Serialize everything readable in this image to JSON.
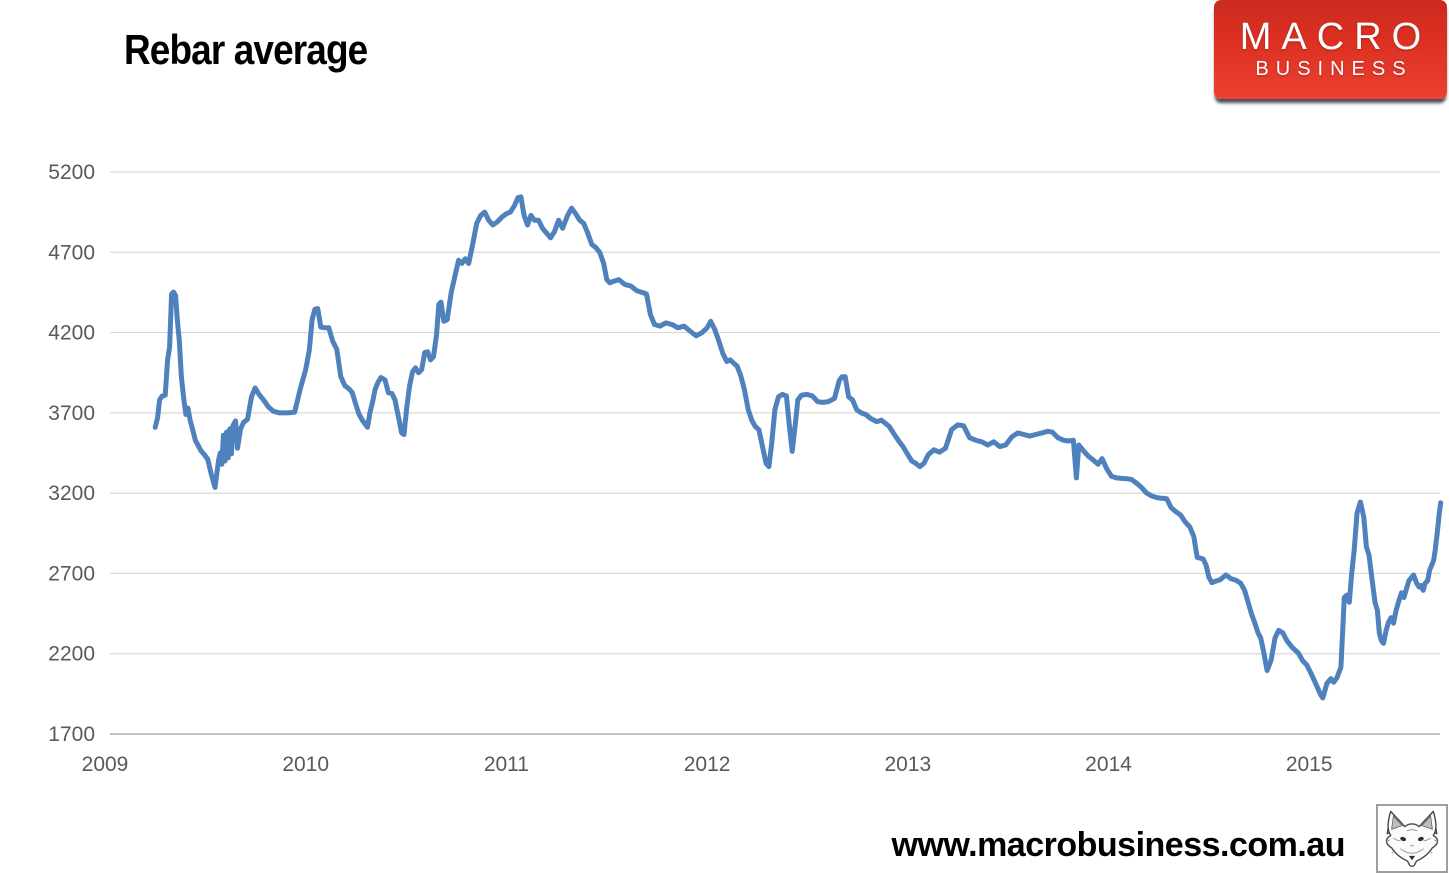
{
  "title": "Rebar average",
  "logo": {
    "line1": "MACRO",
    "line2": "BUSINESS"
  },
  "footer": {
    "url": "www.macrobusiness.com.au"
  },
  "icons": {
    "bottom_right": "fox-sketch-icon"
  },
  "colors": {
    "series": "#4F81BD",
    "grid": "#D9D9D9",
    "axis_line": "#ADADAD",
    "tick_text": "#595959",
    "logo_red_top": "#CB2A1F",
    "logo_red_bottom": "#EC4031",
    "logo_shadow": "#2A2A3E"
  },
  "chart_data": {
    "type": "line",
    "title": "Rebar average",
    "xlabel": "",
    "ylabel": "",
    "legend": "none",
    "grid": "horizontal",
    "x_ticks": [
      2009,
      2010,
      2011,
      2012,
      2013,
      2014,
      2015
    ],
    "y_ticks": [
      5200,
      4700,
      4200,
      3700,
      3200,
      2700,
      2200,
      1700
    ],
    "ylim": [
      1700,
      5200
    ],
    "xlim": [
      2009,
      2015.66
    ],
    "series_name": "Rebar average",
    "points": [
      [
        2009.25,
        3610
      ],
      [
        2009.262,
        3670
      ],
      [
        2009.272,
        3780
      ],
      [
        2009.285,
        3805
      ],
      [
        2009.3,
        3810
      ],
      [
        2009.312,
        4030
      ],
      [
        2009.322,
        4110
      ],
      [
        2009.332,
        4440
      ],
      [
        2009.342,
        4452
      ],
      [
        2009.352,
        4430
      ],
      [
        2009.36,
        4280
      ],
      [
        2009.37,
        4150
      ],
      [
        2009.38,
        3930
      ],
      [
        2009.393,
        3780
      ],
      [
        2009.403,
        3690
      ],
      [
        2009.413,
        3730
      ],
      [
        2009.424,
        3655
      ],
      [
        2009.438,
        3590
      ],
      [
        2009.45,
        3530
      ],
      [
        2009.463,
        3500
      ],
      [
        2009.478,
        3465
      ],
      [
        2009.495,
        3440
      ],
      [
        2009.512,
        3410
      ],
      [
        2009.527,
        3330
      ],
      [
        2009.538,
        3280
      ],
      [
        2009.548,
        3235
      ],
      [
        2009.558,
        3330
      ],
      [
        2009.566,
        3405
      ],
      [
        2009.574,
        3450
      ],
      [
        2009.582,
        3380
      ],
      [
        2009.59,
        3560
      ],
      [
        2009.598,
        3400
      ],
      [
        2009.606,
        3580
      ],
      [
        2009.614,
        3420
      ],
      [
        2009.622,
        3600
      ],
      [
        2009.63,
        3445
      ],
      [
        2009.638,
        3620
      ],
      [
        2009.65,
        3650
      ],
      [
        2009.66,
        3480
      ],
      [
        2009.675,
        3600
      ],
      [
        2009.69,
        3640
      ],
      [
        2009.71,
        3660
      ],
      [
        2009.73,
        3800
      ],
      [
        2009.748,
        3855
      ],
      [
        2009.768,
        3815
      ],
      [
        2009.79,
        3780
      ],
      [
        2009.815,
        3735
      ],
      [
        2009.84,
        3710
      ],
      [
        2009.87,
        3700
      ],
      [
        2009.91,
        3700
      ],
      [
        2009.945,
        3705
      ],
      [
        2009.972,
        3845
      ],
      [
        2010.0,
        3970
      ],
      [
        2010.018,
        4090
      ],
      [
        2010.032,
        4280
      ],
      [
        2010.046,
        4345
      ],
      [
        2010.06,
        4350
      ],
      [
        2010.075,
        4235
      ],
      [
        2010.095,
        4230
      ],
      [
        2010.115,
        4230
      ],
      [
        2010.135,
        4145
      ],
      [
        2010.155,
        4095
      ],
      [
        2010.175,
        3925
      ],
      [
        2010.195,
        3870
      ],
      [
        2010.215,
        3850
      ],
      [
        2010.232,
        3825
      ],
      [
        2010.25,
        3750
      ],
      [
        2010.266,
        3690
      ],
      [
        2010.282,
        3655
      ],
      [
        2010.296,
        3630
      ],
      [
        2010.308,
        3610
      ],
      [
        2010.32,
        3700
      ],
      [
        2010.332,
        3760
      ],
      [
        2010.346,
        3845
      ],
      [
        2010.36,
        3890
      ],
      [
        2010.375,
        3920
      ],
      [
        2010.395,
        3905
      ],
      [
        2010.412,
        3825
      ],
      [
        2010.43,
        3820
      ],
      [
        2010.445,
        3780
      ],
      [
        2010.458,
        3700
      ],
      [
        2010.468,
        3640
      ],
      [
        2010.478,
        3575
      ],
      [
        2010.49,
        3565
      ],
      [
        2010.503,
        3730
      ],
      [
        2010.517,
        3865
      ],
      [
        2010.532,
        3955
      ],
      [
        2010.547,
        3980
      ],
      [
        2010.562,
        3950
      ],
      [
        2010.578,
        3970
      ],
      [
        2010.593,
        4075
      ],
      [
        2010.608,
        4080
      ],
      [
        2010.622,
        4030
      ],
      [
        2010.637,
        4050
      ],
      [
        2010.652,
        4190
      ],
      [
        2010.663,
        4375
      ],
      [
        2010.674,
        4390
      ],
      [
        2010.688,
        4270
      ],
      [
        2010.705,
        4280
      ],
      [
        2010.725,
        4450
      ],
      [
        2010.745,
        4560
      ],
      [
        2010.762,
        4650
      ],
      [
        2010.778,
        4630
      ],
      [
        2010.795,
        4660
      ],
      [
        2010.812,
        4630
      ],
      [
        2010.832,
        4750
      ],
      [
        2010.852,
        4880
      ],
      [
        2010.872,
        4930
      ],
      [
        2010.892,
        4950
      ],
      [
        2010.912,
        4900
      ],
      [
        2010.932,
        4870
      ],
      [
        2010.955,
        4890
      ],
      [
        2010.978,
        4920
      ],
      [
        2011.0,
        4940
      ],
      [
        2011.02,
        4950
      ],
      [
        2011.04,
        4990
      ],
      [
        2011.058,
        5040
      ],
      [
        2011.072,
        5045
      ],
      [
        2011.088,
        4930
      ],
      [
        2011.105,
        4870
      ],
      [
        2011.122,
        4930
      ],
      [
        2011.14,
        4900
      ],
      [
        2011.16,
        4900
      ],
      [
        2011.18,
        4850
      ],
      [
        2011.2,
        4820
      ],
      [
        2011.22,
        4790
      ],
      [
        2011.24,
        4830
      ],
      [
        2011.26,
        4900
      ],
      [
        2011.28,
        4850
      ],
      [
        2011.305,
        4930
      ],
      [
        2011.325,
        4975
      ],
      [
        2011.345,
        4940
      ],
      [
        2011.365,
        4900
      ],
      [
        2011.385,
        4880
      ],
      [
        2011.405,
        4820
      ],
      [
        2011.425,
        4750
      ],
      [
        2011.445,
        4730
      ],
      [
        2011.465,
        4700
      ],
      [
        2011.485,
        4630
      ],
      [
        2011.5,
        4530
      ],
      [
        2011.515,
        4510
      ],
      [
        2011.535,
        4520
      ],
      [
        2011.56,
        4530
      ],
      [
        2011.59,
        4500
      ],
      [
        2011.62,
        4490
      ],
      [
        2011.65,
        4460
      ],
      [
        2011.675,
        4450
      ],
      [
        2011.698,
        4440
      ],
      [
        2011.718,
        4310
      ],
      [
        2011.738,
        4250
      ],
      [
        2011.765,
        4240
      ],
      [
        2011.795,
        4260
      ],
      [
        2011.825,
        4250
      ],
      [
        2011.855,
        4230
      ],
      [
        2011.885,
        4240
      ],
      [
        2011.915,
        4210
      ],
      [
        2011.945,
        4180
      ],
      [
        2011.975,
        4200
      ],
      [
        2012.0,
        4230
      ],
      [
        2012.018,
        4270
      ],
      [
        2012.038,
        4220
      ],
      [
        2012.058,
        4150
      ],
      [
        2012.078,
        4070
      ],
      [
        2012.098,
        4020
      ],
      [
        2012.115,
        4030
      ],
      [
        2012.132,
        4010
      ],
      [
        2012.15,
        3990
      ],
      [
        2012.168,
        3930
      ],
      [
        2012.186,
        3845
      ],
      [
        2012.205,
        3720
      ],
      [
        2012.222,
        3655
      ],
      [
        2012.24,
        3615
      ],
      [
        2012.258,
        3595
      ],
      [
        2012.276,
        3490
      ],
      [
        2012.294,
        3385
      ],
      [
        2012.308,
        3365
      ],
      [
        2012.322,
        3510
      ],
      [
        2012.338,
        3720
      ],
      [
        2012.356,
        3800
      ],
      [
        2012.375,
        3815
      ],
      [
        2012.395,
        3805
      ],
      [
        2012.412,
        3595
      ],
      [
        2012.424,
        3460
      ],
      [
        2012.44,
        3635
      ],
      [
        2012.452,
        3780
      ],
      [
        2012.47,
        3810
      ],
      [
        2012.498,
        3815
      ],
      [
        2012.525,
        3805
      ],
      [
        2012.55,
        3770
      ],
      [
        2012.578,
        3765
      ],
      [
        2012.605,
        3770
      ],
      [
        2012.635,
        3790
      ],
      [
        2012.658,
        3900
      ],
      [
        2012.672,
        3925
      ],
      [
        2012.688,
        3925
      ],
      [
        2012.705,
        3800
      ],
      [
        2012.725,
        3780
      ],
      [
        2012.745,
        3720
      ],
      [
        2012.768,
        3700
      ],
      [
        2012.79,
        3690
      ],
      [
        2012.815,
        3665
      ],
      [
        2012.845,
        3645
      ],
      [
        2012.868,
        3655
      ],
      [
        2012.888,
        3635
      ],
      [
        2012.908,
        3615
      ],
      [
        2012.928,
        3575
      ],
      [
        2012.952,
        3530
      ],
      [
        2012.976,
        3490
      ],
      [
        2013.0,
        3440
      ],
      [
        2013.02,
        3400
      ],
      [
        2013.04,
        3385
      ],
      [
        2013.06,
        3365
      ],
      [
        2013.08,
        3385
      ],
      [
        2013.102,
        3440
      ],
      [
        2013.13,
        3470
      ],
      [
        2013.158,
        3455
      ],
      [
        2013.188,
        3480
      ],
      [
        2013.218,
        3595
      ],
      [
        2013.248,
        3625
      ],
      [
        2013.278,
        3620
      ],
      [
        2013.308,
        3545
      ],
      [
        2013.338,
        3530
      ],
      [
        2013.368,
        3520
      ],
      [
        2013.398,
        3500
      ],
      [
        2013.428,
        3520
      ],
      [
        2013.458,
        3490
      ],
      [
        2013.488,
        3500
      ],
      [
        2013.518,
        3550
      ],
      [
        2013.548,
        3575
      ],
      [
        2013.578,
        3565
      ],
      [
        2013.608,
        3555
      ],
      [
        2013.638,
        3565
      ],
      [
        2013.668,
        3575
      ],
      [
        2013.698,
        3585
      ],
      [
        2013.72,
        3580
      ],
      [
        2013.748,
        3545
      ],
      [
        2013.775,
        3530
      ],
      [
        2013.8,
        3525
      ],
      [
        2013.825,
        3530
      ],
      [
        2013.84,
        3295
      ],
      [
        2013.852,
        3500
      ],
      [
        2013.878,
        3460
      ],
      [
        2013.9,
        3430
      ],
      [
        2013.925,
        3405
      ],
      [
        2013.948,
        3380
      ],
      [
        2013.968,
        3415
      ],
      [
        2013.99,
        3355
      ],
      [
        2014.015,
        3305
      ],
      [
        2014.04,
        3295
      ],
      [
        2014.065,
        3292
      ],
      [
        2014.09,
        3290
      ],
      [
        2014.115,
        3285
      ],
      [
        2014.14,
        3262
      ],
      [
        2014.165,
        3235
      ],
      [
        2014.19,
        3200
      ],
      [
        2014.215,
        3182
      ],
      [
        2014.24,
        3172
      ],
      [
        2014.265,
        3168
      ],
      [
        2014.29,
        3165
      ],
      [
        2014.312,
        3110
      ],
      [
        2014.335,
        3085
      ],
      [
        2014.358,
        3065
      ],
      [
        2014.382,
        3020
      ],
      [
        2014.405,
        2990
      ],
      [
        2014.425,
        2930
      ],
      [
        2014.442,
        2800
      ],
      [
        2014.458,
        2795
      ],
      [
        2014.472,
        2790
      ],
      [
        2014.487,
        2750
      ],
      [
        2014.5,
        2678
      ],
      [
        2014.515,
        2642
      ],
      [
        2014.535,
        2652
      ],
      [
        2014.555,
        2660
      ],
      [
        2014.585,
        2690
      ],
      [
        2014.61,
        2668
      ],
      [
        2014.635,
        2658
      ],
      [
        2014.658,
        2640
      ],
      [
        2014.678,
        2595
      ],
      [
        2014.698,
        2510
      ],
      [
        2014.712,
        2450
      ],
      [
        2014.728,
        2395
      ],
      [
        2014.745,
        2330
      ],
      [
        2014.758,
        2300
      ],
      [
        2014.772,
        2220
      ],
      [
        2014.79,
        2095
      ],
      [
        2014.81,
        2160
      ],
      [
        2014.83,
        2300
      ],
      [
        2014.848,
        2345
      ],
      [
        2014.868,
        2330
      ],
      [
        2014.89,
        2280
      ],
      [
        2014.915,
        2240
      ],
      [
        2014.945,
        2205
      ],
      [
        2014.968,
        2155
      ],
      [
        2014.988,
        2130
      ],
      [
        2015.01,
        2075
      ],
      [
        2015.032,
        2015
      ],
      [
        2015.055,
        1950
      ],
      [
        2015.068,
        1925
      ],
      [
        2015.088,
        2015
      ],
      [
        2015.108,
        2045
      ],
      [
        2015.122,
        2022
      ],
      [
        2015.138,
        2050
      ],
      [
        2015.158,
        2115
      ],
      [
        2015.175,
        2550
      ],
      [
        2015.188,
        2565
      ],
      [
        2015.2,
        2520
      ],
      [
        2015.212,
        2700
      ],
      [
        2015.224,
        2845
      ],
      [
        2015.238,
        3075
      ],
      [
        2015.255,
        3145
      ],
      [
        2015.272,
        3050
      ],
      [
        2015.285,
        2865
      ],
      [
        2015.298,
        2815
      ],
      [
        2015.312,
        2675
      ],
      [
        2015.328,
        2520
      ],
      [
        2015.34,
        2470
      ],
      [
        2015.35,
        2325
      ],
      [
        2015.36,
        2280
      ],
      [
        2015.37,
        2265
      ],
      [
        2015.383,
        2345
      ],
      [
        2015.395,
        2395
      ],
      [
        2015.408,
        2425
      ],
      [
        2015.42,
        2390
      ],
      [
        2015.433,
        2470
      ],
      [
        2015.447,
        2530
      ],
      [
        2015.46,
        2580
      ],
      [
        2015.472,
        2550
      ],
      [
        2015.485,
        2605
      ],
      [
        2015.497,
        2655
      ],
      [
        2015.51,
        2675
      ],
      [
        2015.52,
        2690
      ],
      [
        2015.535,
        2640
      ],
      [
        2015.548,
        2615
      ],
      [
        2015.558,
        2625
      ],
      [
        2015.568,
        2595
      ],
      [
        2015.578,
        2640
      ],
      [
        2015.59,
        2655
      ],
      [
        2015.6,
        2720
      ],
      [
        2015.61,
        2750
      ],
      [
        2015.62,
        2780
      ],
      [
        2015.628,
        2845
      ],
      [
        2015.638,
        2950
      ],
      [
        2015.648,
        3075
      ],
      [
        2015.655,
        3140
      ]
    ]
  }
}
